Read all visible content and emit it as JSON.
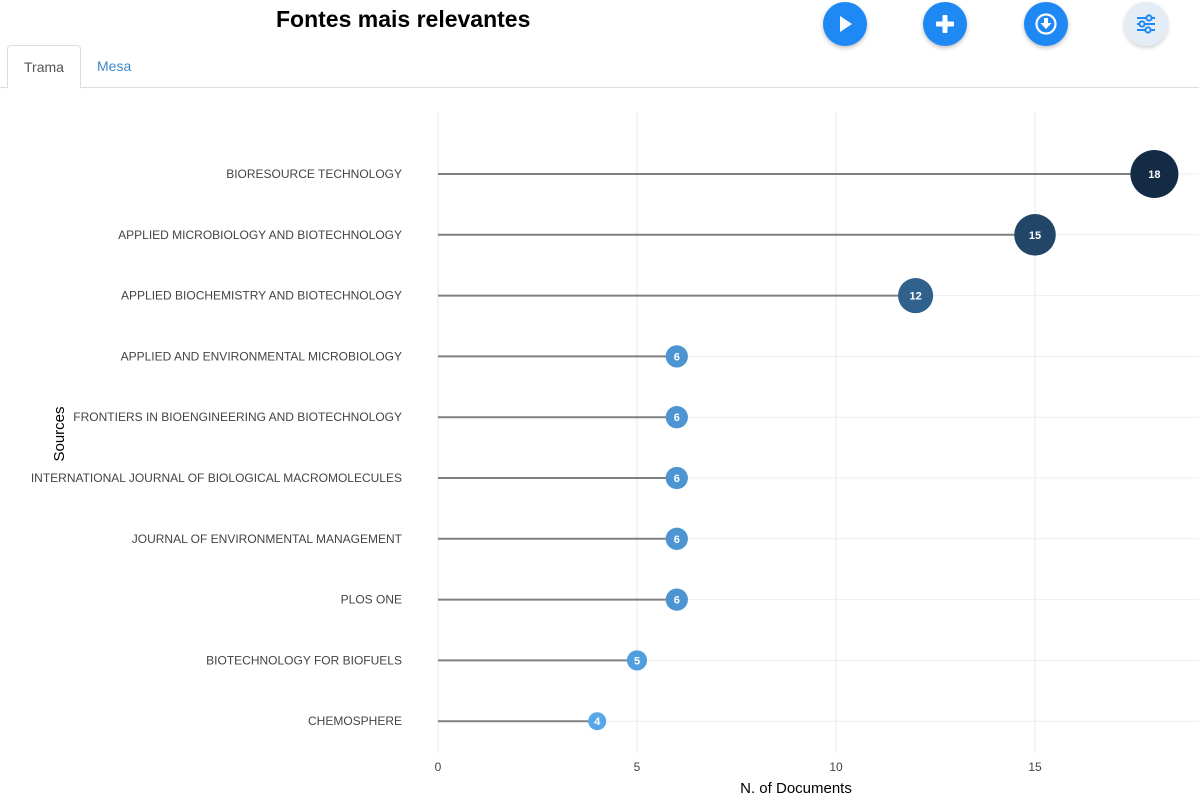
{
  "header": {
    "title": "Fontes mais relevantes",
    "buttons": [
      {
        "name": "play-button",
        "icon": "play-icon"
      },
      {
        "name": "add-button",
        "icon": "plus-icon"
      },
      {
        "name": "download-button",
        "icon": "download-icon"
      },
      {
        "name": "settings-button",
        "icon": "sliders-icon"
      }
    ]
  },
  "tabs": [
    {
      "label": "Trama",
      "active": true
    },
    {
      "label": "Mesa",
      "active": false
    }
  ],
  "colors": {
    "accent": "#1e88f5",
    "stem": "#808080",
    "point_low": "#56a7ea",
    "point_high": "#132b45"
  },
  "chart_data": {
    "type": "lollipop",
    "categories": [
      "BIORESOURCE TECHNOLOGY",
      "APPLIED MICROBIOLOGY AND BIOTECHNOLOGY",
      "APPLIED BIOCHEMISTRY AND BIOTECHNOLOGY",
      "APPLIED AND ENVIRONMENTAL MICROBIOLOGY",
      "FRONTIERS IN BIOENGINEERING AND BIOTECHNOLOGY",
      "INTERNATIONAL JOURNAL OF BIOLOGICAL MACROMOLECULES",
      "JOURNAL OF ENVIRONMENTAL MANAGEMENT",
      "PLOS ONE",
      "BIOTECHNOLOGY FOR BIOFUELS",
      "CHEMOSPHERE"
    ],
    "values": [
      18,
      15,
      12,
      6,
      6,
      6,
      6,
      6,
      5,
      4
    ],
    "xlabel": "N. of Documents",
    "ylabel": "Sources",
    "xticks": [
      0,
      5,
      10,
      15
    ],
    "xlim": [
      0,
      19
    ],
    "grid": true
  }
}
